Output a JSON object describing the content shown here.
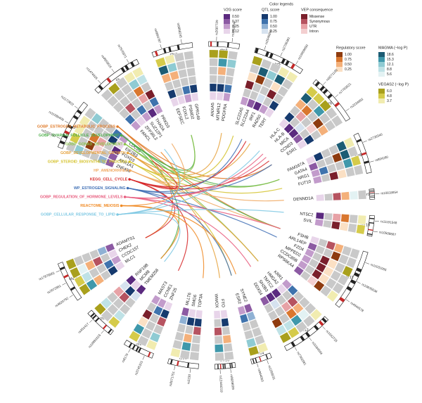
{
  "legend": {
    "title": "Color legends",
    "scales": [
      {
        "title": "V2G score",
        "labels": [
          "0.50",
          "0.37",
          "0.25",
          "0.12"
        ],
        "colors": [
          "#5b2a7f",
          "#8c5aa3",
          "#c29bcb",
          "#e8d5ea"
        ]
      },
      {
        "title": "QTL score",
        "labels": [
          "1.00",
          "0.75",
          "0.50",
          "0.25"
        ],
        "colors": [
          "#163a6e",
          "#3f73ad",
          "#8fb1d4",
          "#d6e2ef"
        ]
      },
      {
        "title": "VEP consequence",
        "labels": [
          "Missense",
          "Synonymous",
          "UTR",
          "Intron"
        ],
        "colors": [
          "#7a1f2b",
          "#b65360",
          "#e7a2a6",
          "#f3cfd0"
        ]
      },
      {
        "title": "Regulatory score",
        "labels": [
          "1.00",
          "0.75",
          "0.50",
          "0.25"
        ],
        "colors": [
          "#8e3b0f",
          "#d9772f",
          "#f4b07a",
          "#fbe0c4"
        ]
      },
      {
        "title": "MAGMA (−log P)",
        "labels": [
          "18.6",
          "15.3",
          "12.1",
          "8.8",
          "5.6"
        ],
        "colors": [
          "#1c5c74",
          "#3f98ab",
          "#8fcbd3",
          "#bfe2e6",
          "#e3f2f3"
        ]
      },
      {
        "title": "VEGAS2 (−log P)",
        "labels": [
          "6.0",
          "4.8",
          "3.7"
        ],
        "colors": [
          "#a9a01c",
          "#d5cb4a",
          "#f1ecb0"
        ]
      }
    ]
  },
  "sectors": [
    {
      "label": "chr1",
      "genes": [
        "ZNF436",
        "AKR1A1",
        "FOXD3",
        "EIF2B3",
        "CDC20"
      ],
      "snps": [
        "rs2255192",
        "rs11580409",
        "rs1172822"
      ]
    },
    {
      "label": "chr2",
      "genes": [
        "FANCL",
        "ZFP36L2",
        "SUZ12P1",
        "THADA",
        "PRKD3"
      ],
      "snps": [
        "rs1474426",
        "rs4953616",
        "rs7570971"
      ]
    },
    {
      "label": "chr3",
      "genes": [
        "EEFSEC",
        "FOXL2",
        "PSMD2",
        "GPR149"
      ],
      "snps": [
        "rs4894787",
        "rs9868245"
      ]
    },
    {
      "label": "chr4",
      "genes": [
        "ANXA5",
        "MTMR12",
        "PDGFRA"
      ],
      "snps": [
        "rs2687729",
        "rs1982244"
      ]
    },
    {
      "label": "chr5",
      "genes": [
        "SLC22A5",
        "SLC22A4",
        "IRF1",
        "RAD50",
        "TERT"
      ],
      "snps": [
        "rs2546890",
        "rs2706381",
        "rs10069690"
      ]
    },
    {
      "label": "chr6",
      "genes": [
        "HLA-C",
        "HLA-B",
        "MICA",
        "CCND3",
        "ESR1"
      ],
      "snps": [
        "rs9271100",
        "rs7763521",
        "rs2234693"
      ]
    },
    {
      "label": "chr8",
      "genes": [
        "FAM167A",
        "GATA4",
        "NRG1",
        "FUT10"
      ],
      "snps": [
        "rs2736340",
        "rs804280"
      ]
    },
    {
      "label": "chr9",
      "genes": [
        "DENND1A"
      ],
      "snps": [
        "rs10818854"
      ]
    },
    {
      "label": "chr10",
      "genes": [
        "NT5C2",
        "SVIL"
      ],
      "snps": [
        "rs11191548",
        "rs10508687"
      ]
    },
    {
      "label": "chr11",
      "genes": [
        "FSHB",
        "ARL14EP",
        "FZD4",
        "MPPED2",
        "CCDC85B",
        "RPS6KA4"
      ],
      "snps": [
        "rs11031005",
        "rs10835638",
        "rs4944578"
      ]
    },
    {
      "label": "chr12",
      "genes": [
        "KRR1",
        "HMGA2",
        "TMTC2",
        "SH2B3",
        "DDX54"
      ],
      "snps": [
        "rs1042725",
        "rs3184504",
        "rs7302981"
      ]
    },
    {
      "label": "chr14",
      "genes": [
        "SYNE2",
        "ESR2"
      ],
      "snps": [
        "rs1256031",
        "rs944050"
      ]
    },
    {
      "label": "chr16",
      "genes": [
        "FTO",
        "WWOX"
      ],
      "snps": [
        "rs9939609",
        "rs12446219"
      ]
    },
    {
      "label": "chr17",
      "genes": [
        "TOP3A",
        "SMG6",
        "MLLT6"
      ],
      "snps": [
        "rs2230",
        "rs8071751"
      ]
    },
    {
      "label": "chr19",
      "genes": [
        "ZNF25",
        "CCNE1",
        "MAST3"
      ],
      "snps": [
        "rs3745101",
        "rs8170"
      ]
    },
    {
      "label": "chr20",
      "genes": [
        "TMEM258",
        "MCM8",
        "RNF19B"
      ],
      "snps": [
        "rs16991615",
        "rs451417"
      ]
    },
    {
      "label": "chr22",
      "genes": [
        "MLC1",
        "CCDC157",
        "CHEK2",
        "ADAMTS1"
      ],
      "snps": [
        "rs4820792",
        "rs2072861",
        "rs17879961"
      ]
    }
  ],
  "pathways": [
    {
      "name": "GOBP_ESTROGEN_METABOLIC_PROCESS",
      "color": "#e07b2a",
      "genes": [
        "ESR1",
        "FSHB",
        "CHEK2"
      ]
    },
    {
      "name": "GOBP_OVARIAN_FOLLICLE_DEVELOPMENT",
      "color": "#4daf4a",
      "genes": [
        "FOXL2",
        "GATA4",
        "FSHB",
        "MCM8"
      ]
    },
    {
      "name": "GOBP_GONAD_DEVELOPMENT",
      "color": "#8bc34a",
      "genes": [
        "FOXL2",
        "GATA4",
        "HMGA2"
      ]
    },
    {
      "name": "GOBP_DEVELOPMENTAL_GROWTH",
      "color": "#e6a23c",
      "genes": [
        "HMGA2",
        "PDGFRA",
        "TERT",
        "FTO"
      ]
    },
    {
      "name": "GOBP_STEROID_BIOSYNTHETIC_PROCESS",
      "color": "#d4c22a",
      "genes": [
        "ESR2",
        "FUT10",
        "SLC22A5"
      ]
    },
    {
      "name": "HP_AMENORRHEA",
      "color": "#f0a860",
      "genes": [
        "FSHB",
        "DENND1A",
        "THADA"
      ]
    },
    {
      "name": "KEGG_CELL_CYCLE",
      "color": "#d62728",
      "genes": [
        "CCND3",
        "CDC20",
        "CCNE1",
        "CHEK2",
        "RAD50"
      ]
    },
    {
      "name": "WP_ESTROGEN_SIGNALING",
      "color": "#3f6fb5",
      "genes": [
        "ESR1",
        "ESR2",
        "FZD4",
        "IRF1"
      ]
    },
    {
      "name": "GOBP_REGULATION_OF_HORMONE_LEVELS",
      "color": "#e75a7c",
      "genes": [
        "FSHB",
        "SH2B3",
        "HLA-B",
        "MICA"
      ]
    },
    {
      "name": "REACTOME_MEIOSIS",
      "color": "#f08a24",
      "genes": [
        "MCM8",
        "TOP3A",
        "FANCL",
        "SYNE2"
      ]
    },
    {
      "name": "GOBP_CELLULAR_RESPONSE_TO_LIPID",
      "color": "#7ec8e3",
      "genes": [
        "NT5C2",
        "TMEM258",
        "ZFP36L2",
        "HLA-C"
      ]
    }
  ]
}
